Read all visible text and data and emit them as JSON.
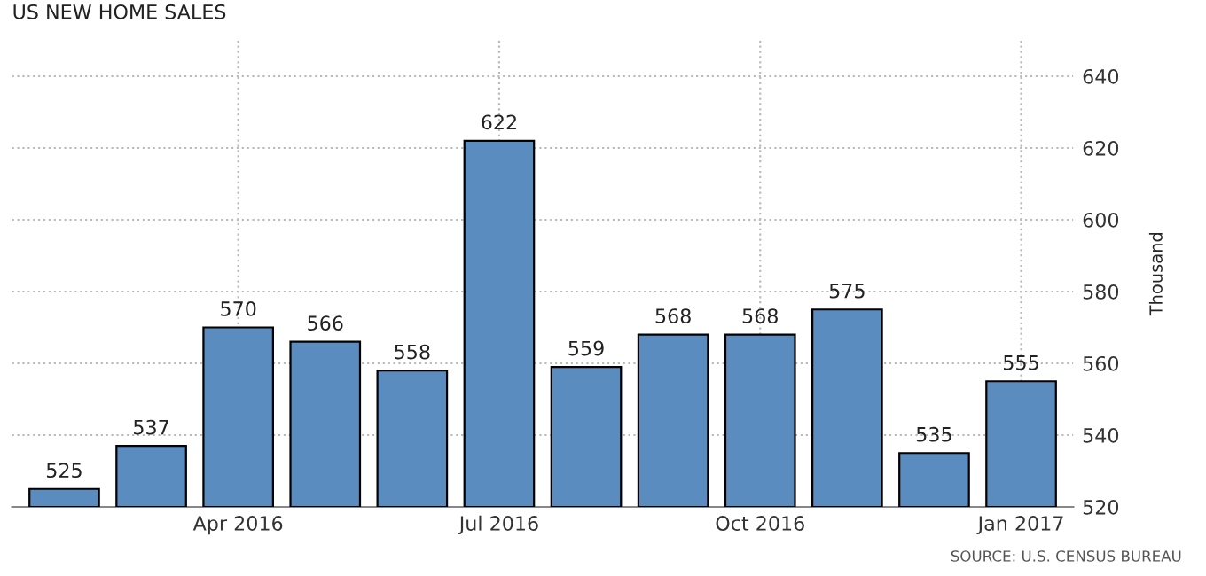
{
  "chart_data": {
    "type": "bar",
    "title": "US NEW HOME SALES",
    "ylabel": "Thousand",
    "categories": [
      null,
      null,
      "Apr 2016",
      null,
      null,
      "Jul 2016",
      null,
      null,
      "Oct 2016",
      null,
      null,
      "Jan 2017"
    ],
    "series": [
      {
        "color": "#5b8cc0",
        "values": [
          525,
          537,
          570,
          566,
          558,
          622,
          559,
          568,
          568,
          575,
          535,
          555
        ]
      }
    ],
    "ylim": [
      520,
      650
    ],
    "yticks": [
      520,
      540,
      560,
      580,
      600,
      620,
      640
    ],
    "grid": true,
    "data_labels": true,
    "annotations": [
      "SOURCE: U.S. CENSUS BUREAU"
    ]
  }
}
